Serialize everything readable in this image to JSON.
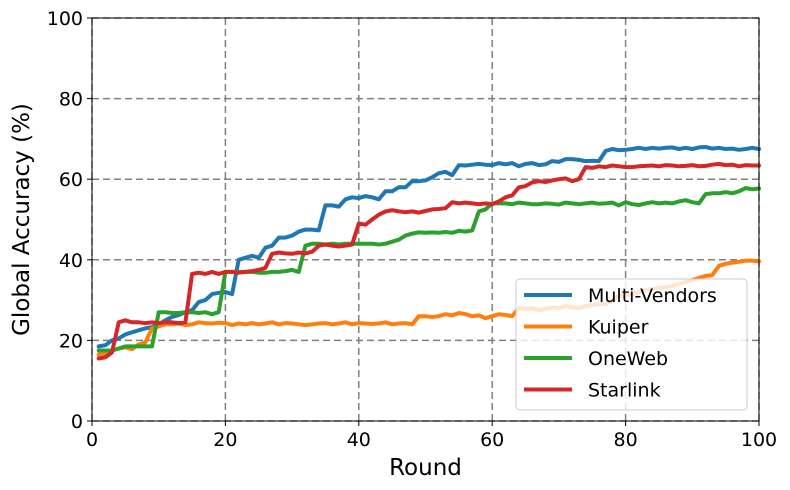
{
  "chart_data": {
    "type": "line",
    "title": "",
    "xlabel": "Round",
    "ylabel": "Global Accuracy (%)",
    "xlim": [
      0,
      100
    ],
    "ylim": [
      0,
      100
    ],
    "xticks": [
      0,
      20,
      40,
      60,
      80,
      100
    ],
    "yticks": [
      0,
      20,
      40,
      60,
      80,
      100
    ],
    "grid": true,
    "legend_position": "bottom-right",
    "series": [
      {
        "name": "Multi-Vendors",
        "color": "#1f77b4",
        "x": [
          1,
          2,
          3,
          4,
          5,
          6,
          7,
          8,
          9,
          10,
          11,
          12,
          13,
          14,
          15,
          16,
          17,
          18,
          19,
          20,
          21,
          22,
          23,
          24,
          25,
          26,
          27,
          28,
          29,
          30,
          31,
          32,
          33,
          34,
          35,
          36,
          37,
          38,
          39,
          40,
          41,
          42,
          43,
          44,
          45,
          46,
          47,
          48,
          49,
          50,
          51,
          52,
          53,
          54,
          55,
          56,
          57,
          58,
          59,
          60,
          61,
          62,
          63,
          64,
          65,
          66,
          67,
          68,
          69,
          70,
          71,
          72,
          73,
          74,
          75,
          76,
          77,
          78,
          79,
          80,
          81,
          82,
          83,
          84,
          85,
          86,
          87,
          88,
          89,
          90,
          91,
          92,
          93,
          94,
          95,
          96,
          97,
          98,
          99,
          100
        ],
        "y": [
          18.5,
          18.8,
          20,
          20.5,
          21.5,
          22,
          22.5,
          23,
          23.3,
          24,
          25,
          25.8,
          26.3,
          27,
          27.5,
          29.5,
          30,
          31.5,
          31.8,
          32,
          31.5,
          40,
          40.5,
          41,
          40.5,
          43,
          43.5,
          45.5,
          45.5,
          46,
          47,
          47.5,
          47.5,
          47.3,
          53.5,
          53.5,
          53.2,
          55,
          55.5,
          55.3,
          55.8,
          55.5,
          55,
          57,
          57,
          58,
          58,
          59.5,
          59.5,
          59.7,
          60.5,
          61.5,
          61.8,
          61,
          63.5,
          63.4,
          63.6,
          63.8,
          63.6,
          63.5,
          64,
          63.7,
          64,
          63.2,
          63.8,
          64,
          63.5,
          63.7,
          64.5,
          64.3,
          65,
          65,
          64.8,
          64.5,
          64.6,
          64.5,
          67,
          67.5,
          67.2,
          67.3,
          67.5,
          67.8,
          67.5,
          67.8,
          67.6,
          67.8,
          67.9,
          67.5,
          67.8,
          67.5,
          67.9,
          68,
          67.6,
          67.8,
          67.5,
          67.6,
          67.3,
          67.5,
          67.8,
          67.5
        ]
      },
      {
        "name": "Kuiper",
        "color": "#ff7f0e",
        "x": [
          1,
          2,
          3,
          4,
          5,
          6,
          7,
          8,
          9,
          10,
          11,
          12,
          13,
          14,
          15,
          16,
          17,
          18,
          19,
          20,
          21,
          22,
          23,
          24,
          25,
          26,
          27,
          28,
          29,
          30,
          31,
          32,
          33,
          34,
          35,
          36,
          37,
          38,
          39,
          40,
          41,
          42,
          43,
          44,
          45,
          46,
          47,
          48,
          49,
          50,
          51,
          52,
          53,
          54,
          55,
          56,
          57,
          58,
          59,
          60,
          61,
          62,
          63,
          64,
          65,
          66,
          67,
          68,
          69,
          70,
          71,
          72,
          73,
          74,
          75,
          76,
          77,
          78,
          79,
          80,
          81,
          82,
          83,
          84,
          85,
          86,
          87,
          88,
          89,
          90,
          91,
          92,
          93,
          94,
          95,
          96,
          97,
          98,
          99,
          100
        ],
        "y": [
          16.5,
          16.8,
          17.5,
          18,
          18.3,
          17.8,
          19,
          19.5,
          23,
          23.5,
          24,
          24,
          24.2,
          23.8,
          24,
          24.5,
          24.3,
          24.2,
          24.4,
          24.3,
          23.8,
          24.2,
          24,
          24.3,
          24,
          24.2,
          24.5,
          24,
          24.3,
          24.2,
          24,
          23.8,
          24,
          24.2,
          24.3,
          24,
          24.2,
          24.5,
          24,
          24.3,
          24.2,
          24.1,
          24.2,
          24.5,
          24,
          24.2,
          24.3,
          24,
          26,
          26,
          25.8,
          26,
          26.5,
          26.2,
          26.8,
          26.5,
          26,
          26.2,
          25.5,
          26,
          26.5,
          26.3,
          26,
          28,
          27.8,
          28,
          27.5,
          27.8,
          28.2,
          28,
          28.5,
          28.3,
          28,
          28.5,
          28.8,
          29,
          29,
          30,
          31,
          31.2,
          31.5,
          32,
          32.5,
          32.8,
          33,
          33.2,
          33.5,
          34,
          34.5,
          35,
          35.5,
          36,
          36.2,
          38.5,
          39,
          39.3,
          39.5,
          39.8,
          39.8,
          39.6
        ]
      },
      {
        "name": "OneWeb",
        "color": "#2ca02c",
        "x": [
          1,
          2,
          3,
          4,
          5,
          6,
          7,
          8,
          9,
          10,
          11,
          12,
          13,
          14,
          15,
          16,
          17,
          18,
          19,
          20,
          21,
          22,
          23,
          24,
          25,
          26,
          27,
          28,
          29,
          30,
          31,
          32,
          33,
          34,
          35,
          36,
          37,
          38,
          39,
          40,
          41,
          42,
          43,
          44,
          45,
          46,
          47,
          48,
          49,
          50,
          51,
          52,
          53,
          54,
          55,
          56,
          57,
          58,
          59,
          60,
          61,
          62,
          63,
          64,
          65,
          66,
          67,
          68,
          69,
          70,
          71,
          72,
          73,
          74,
          75,
          76,
          77,
          78,
          79,
          80,
          81,
          82,
          83,
          84,
          85,
          86,
          87,
          88,
          89,
          90,
          91,
          92,
          93,
          94,
          95,
          96,
          97,
          98,
          99,
          100
        ],
        "y": [
          17.5,
          17.5,
          17.5,
          18,
          18.5,
          18.5,
          18.5,
          18.5,
          18.5,
          27,
          27,
          26.8,
          26.8,
          27,
          27,
          26.8,
          27,
          26.5,
          27,
          37,
          37,
          37,
          37,
          37,
          36.8,
          36.8,
          37,
          37,
          37.2,
          37.5,
          37,
          43.5,
          44,
          44,
          43.8,
          44,
          43.8,
          44,
          44,
          44,
          44,
          44,
          43.8,
          44,
          44.5,
          45,
          46,
          46.5,
          46.8,
          46.7,
          46.8,
          46.7,
          46.9,
          46.7,
          47.2,
          47,
          47.3,
          52,
          52.5,
          54,
          54,
          54,
          53.8,
          54.2,
          54,
          53.8,
          53.8,
          54,
          53.9,
          53.7,
          54.2,
          54,
          53.8,
          54,
          54.2,
          53.9,
          54,
          54.2,
          53.5,
          54.3,
          53.8,
          53.6,
          54,
          54.3,
          54,
          54.2,
          54,
          54.5,
          54.8,
          54.3,
          54,
          56.3,
          56.5,
          56.5,
          56.8,
          56.5,
          57,
          57.8,
          57.5,
          57.7
        ]
      },
      {
        "name": "Starlink",
        "color": "#d62728",
        "x": [
          1,
          2,
          3,
          4,
          5,
          6,
          7,
          8,
          9,
          10,
          11,
          12,
          13,
          14,
          15,
          16,
          17,
          18,
          19,
          20,
          21,
          22,
          23,
          24,
          25,
          26,
          27,
          28,
          29,
          30,
          31,
          32,
          33,
          34,
          35,
          36,
          37,
          38,
          39,
          40,
          41,
          42,
          43,
          44,
          45,
          46,
          47,
          48,
          49,
          50,
          51,
          52,
          53,
          54,
          55,
          56,
          57,
          58,
          59,
          60,
          61,
          62,
          63,
          64,
          65,
          66,
          67,
          68,
          69,
          70,
          71,
          72,
          73,
          74,
          75,
          76,
          77,
          78,
          79,
          80,
          81,
          82,
          83,
          84,
          85,
          86,
          87,
          88,
          89,
          90,
          91,
          92,
          93,
          94,
          95,
          96,
          97,
          98,
          99,
          100
        ],
        "y": [
          15.5,
          15.8,
          17,
          24.5,
          25,
          24.5,
          24.5,
          24.3,
          24.5,
          24.3,
          24.5,
          24.5,
          24.3,
          24.5,
          36.5,
          36.8,
          36.5,
          37,
          36.5,
          37,
          37,
          36.8,
          37,
          37.2,
          37.5,
          38,
          41.5,
          41.8,
          41.6,
          41.5,
          41.8,
          41.6,
          42,
          43.5,
          43.8,
          43.5,
          43.3,
          43.5,
          43.8,
          49,
          48.7,
          50,
          51.2,
          52,
          52.3,
          52,
          51.8,
          52,
          51.7,
          52.1,
          52.5,
          52.6,
          52.8,
          54.3,
          54,
          54.2,
          54,
          53.8,
          54,
          53.8,
          54.5,
          55.5,
          56,
          58,
          58.3,
          59.2,
          59.5,
          59.3,
          59.7,
          60,
          60.2,
          59.5,
          60,
          63,
          62.8,
          63.2,
          63,
          63.4,
          63.2,
          63,
          63,
          63.2,
          63.3,
          63.4,
          63.2,
          63.5,
          63.4,
          63.2,
          63.3,
          63.5,
          63.2,
          63.3,
          63.6,
          63.8,
          63.5,
          63.6,
          63.2,
          63.5,
          63.4,
          63.4
        ]
      }
    ]
  }
}
